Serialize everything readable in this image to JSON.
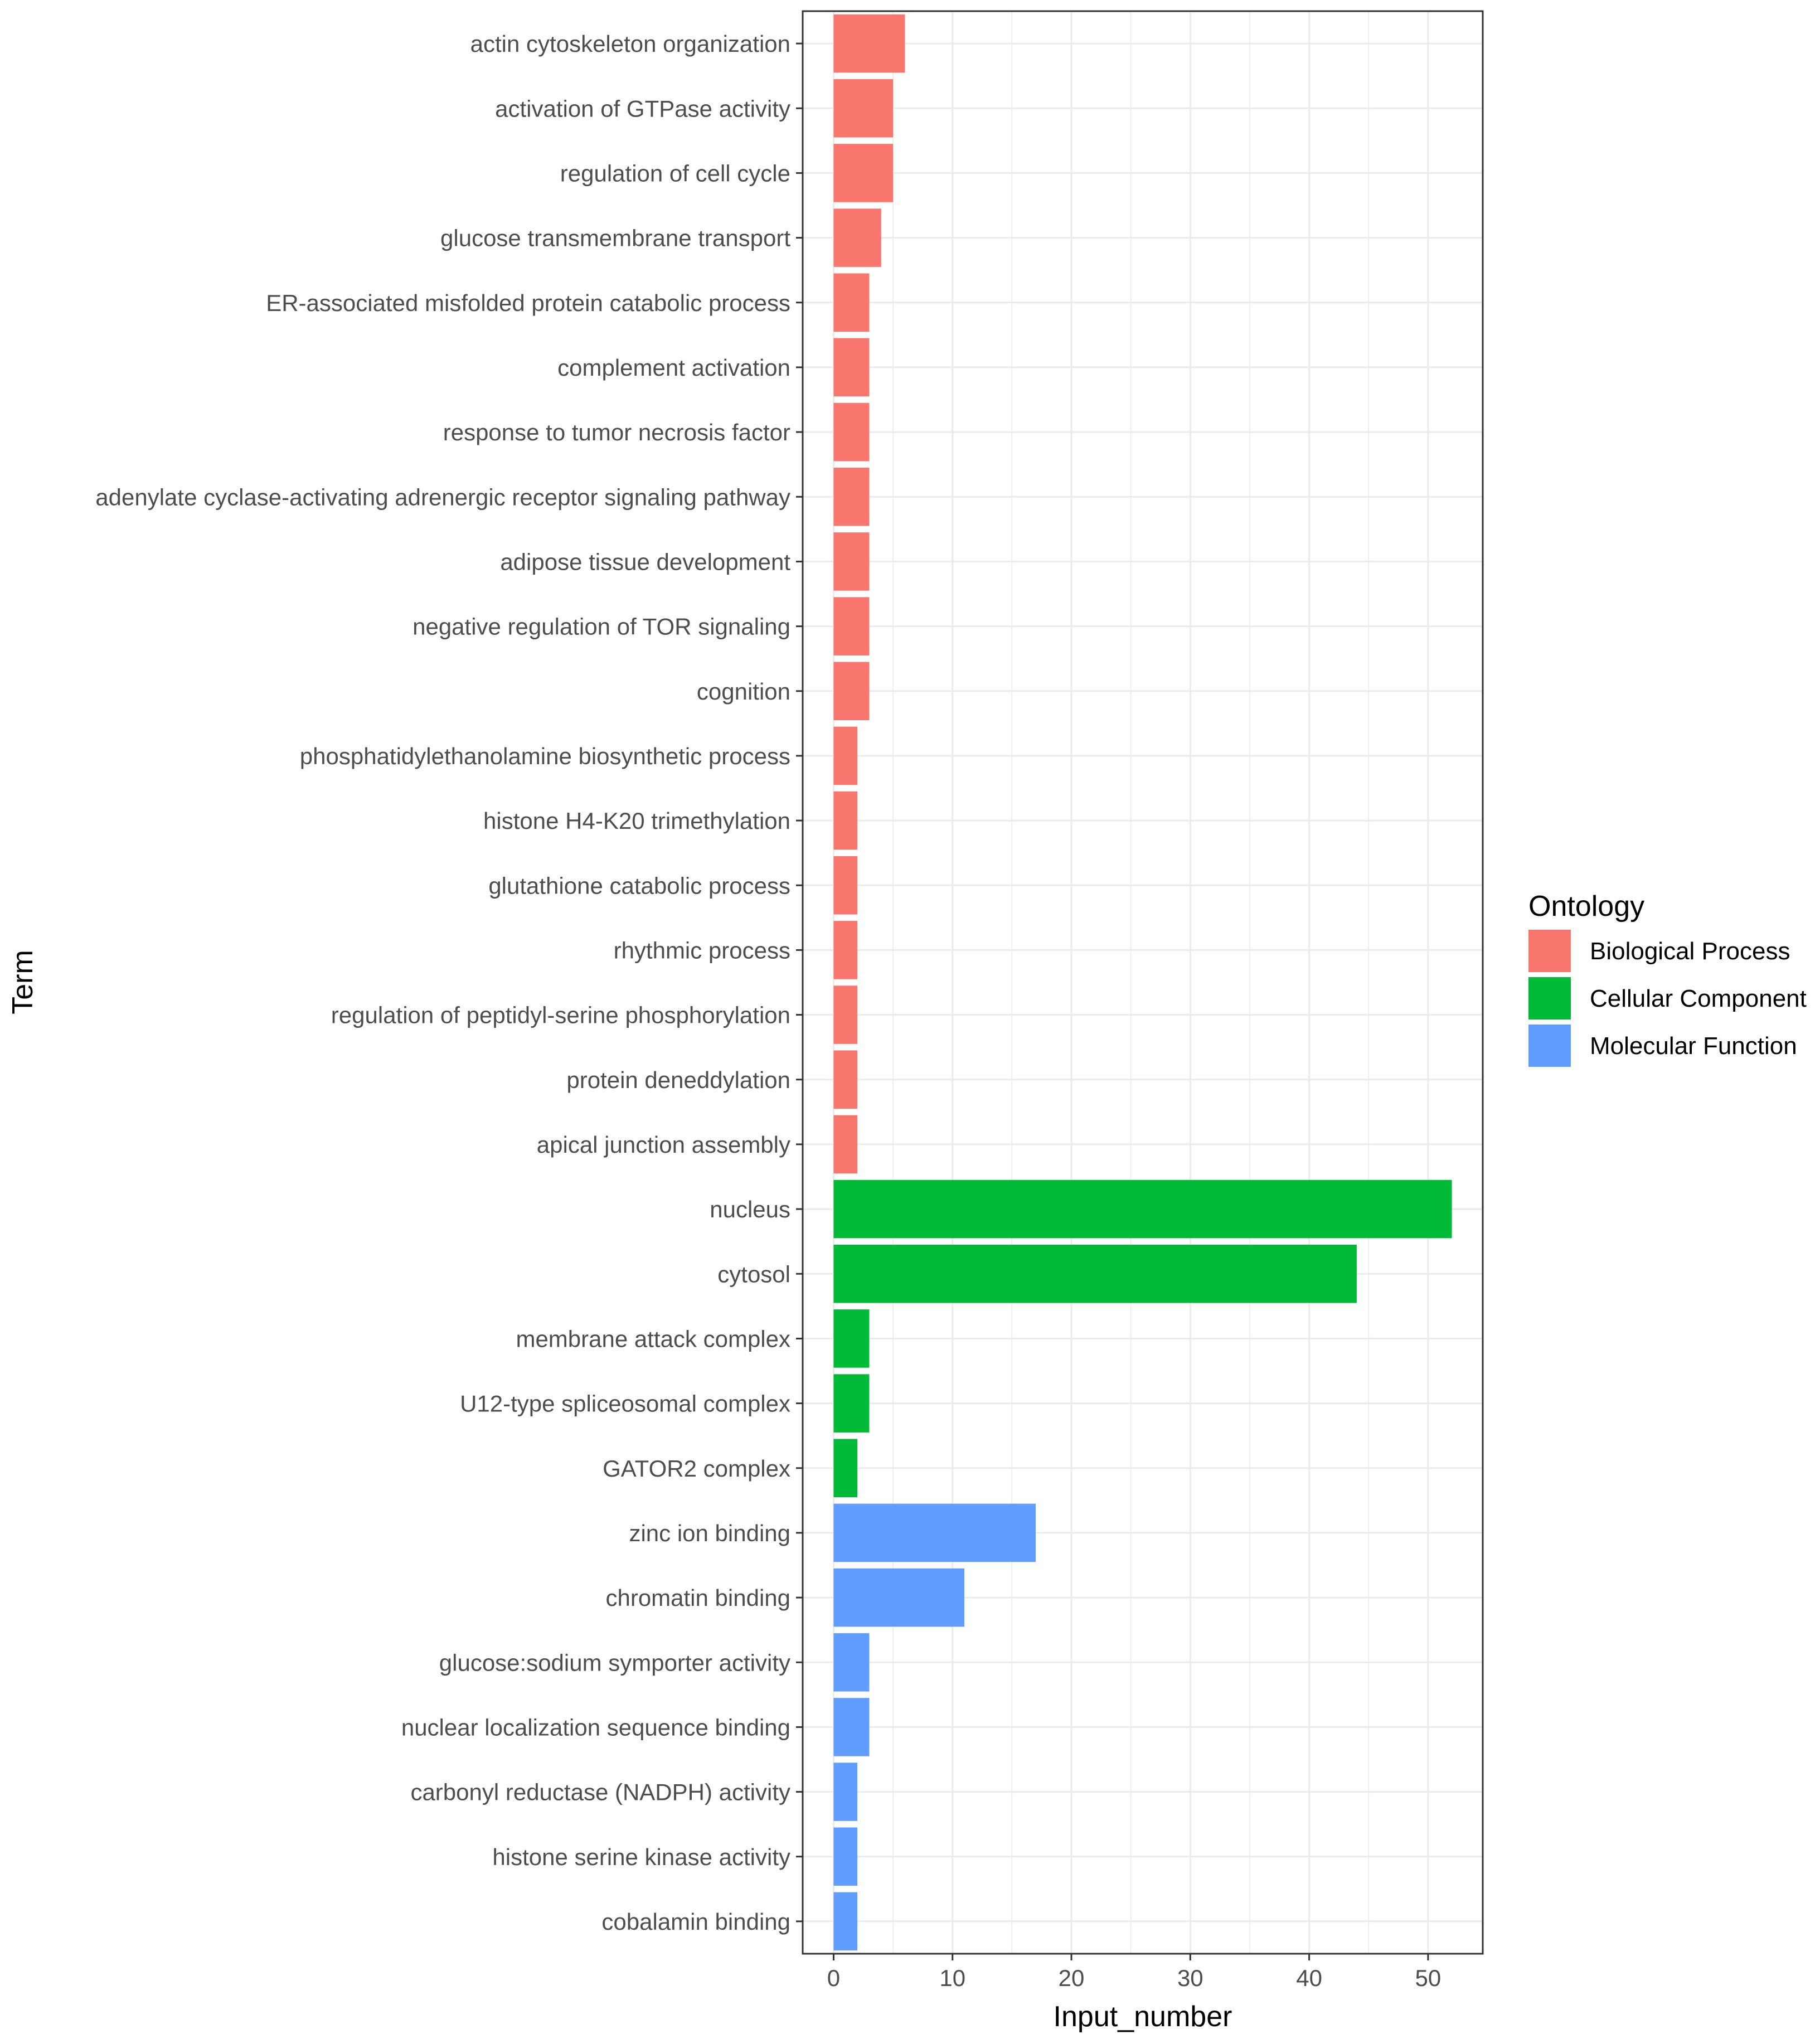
{
  "chart_data": {
    "type": "bar",
    "orientation": "horizontal",
    "xlabel": "Input_number",
    "ylabel": "Term",
    "xlim": [
      -2.6,
      54.6
    ],
    "xticks": [
      0,
      10,
      20,
      30,
      40,
      50
    ],
    "grid": true,
    "legend": {
      "title": "Ontology",
      "placement": "right",
      "entries": [
        {
          "label": "Biological Process",
          "color": "#F8766D"
        },
        {
          "label": "Cellular Component",
          "color": "#00BA38"
        },
        {
          "label": "Molecular Function",
          "color": "#619CFF"
        }
      ]
    },
    "categories": [
      "actin cytoskeleton organization",
      "activation of GTPase activity",
      "regulation of cell cycle",
      "glucose transmembrane transport",
      "ER-associated misfolded protein catabolic process",
      "complement activation",
      "response to tumor necrosis factor",
      "adenylate cyclase-activating adrenergic receptor signaling pathway",
      "adipose tissue development",
      "negative regulation of TOR signaling",
      "cognition",
      "phosphatidylethanolamine biosynthetic process",
      "histone H4-K20 trimethylation",
      "glutathione catabolic process",
      "rhythmic process",
      "regulation of peptidyl-serine phosphorylation",
      "protein deneddylation",
      "apical junction assembly",
      "nucleus",
      "cytosol",
      "membrane attack complex",
      "U12-type spliceosomal complex",
      "GATOR2 complex",
      "zinc ion binding",
      "chromatin binding",
      "glucose:sodium symporter activity",
      "nuclear localization sequence binding",
      "carbonyl reductase (NADPH) activity",
      "histone serine kinase activity",
      "cobalamin binding"
    ],
    "values": [
      6,
      5,
      5,
      4,
      3,
      3,
      3,
      3,
      3,
      3,
      3,
      2,
      2,
      2,
      2,
      2,
      2,
      2,
      52,
      44,
      3,
      3,
      2,
      17,
      11,
      3,
      3,
      2,
      2,
      2
    ],
    "groups": [
      "Biological Process",
      "Biological Process",
      "Biological Process",
      "Biological Process",
      "Biological Process",
      "Biological Process",
      "Biological Process",
      "Biological Process",
      "Biological Process",
      "Biological Process",
      "Biological Process",
      "Biological Process",
      "Biological Process",
      "Biological Process",
      "Biological Process",
      "Biological Process",
      "Biological Process",
      "Biological Process",
      "Cellular Component",
      "Cellular Component",
      "Cellular Component",
      "Cellular Component",
      "Cellular Component",
      "Molecular Function",
      "Molecular Function",
      "Molecular Function",
      "Molecular Function",
      "Molecular Function",
      "Molecular Function",
      "Molecular Function"
    ]
  }
}
